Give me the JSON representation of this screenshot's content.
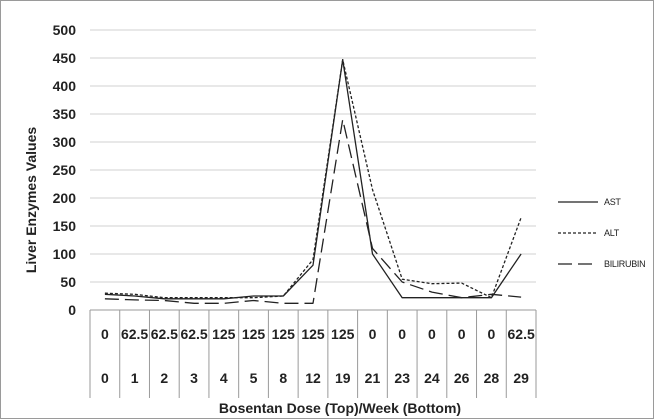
{
  "chart_data": {
    "type": "line",
    "title": "",
    "xlabel": "Bosentan Dose (Top)/Week (Bottom)",
    "ylabel": "Liver Enzymes Values",
    "ylim": [
      0,
      500
    ],
    "yticks": [
      "0",
      "50",
      "100",
      "150",
      "200",
      "250",
      "300",
      "350",
      "400",
      "450",
      "500"
    ],
    "grid": "horizontal",
    "legend_position": "right",
    "categories_dose": [
      "0",
      "62.5",
      "62.5",
      "62.5",
      "125",
      "125",
      "125",
      "125",
      "125",
      "0",
      "0",
      "0",
      "0",
      "0",
      "62.5"
    ],
    "categories_week": [
      "0",
      "1",
      "2",
      "3",
      "4",
      "5",
      "8",
      "12",
      "19",
      "21",
      "23",
      "24",
      "26",
      "28",
      "29"
    ],
    "series": [
      {
        "name": "AST",
        "dash": "solid",
        "values": [
          28,
          25,
          20,
          20,
          20,
          25,
          25,
          80,
          447,
          100,
          22,
          22,
          22,
          22,
          100
        ]
      },
      {
        "name": "ALT",
        "dash": "dotted",
        "values": [
          30,
          28,
          22,
          22,
          22,
          22,
          25,
          90,
          447,
          215,
          55,
          47,
          48,
          22,
          165
        ]
      },
      {
        "name": "BILIRUBIN",
        "dash": "dashed",
        "values": [
          20,
          18,
          17,
          12,
          12,
          17,
          12,
          12,
          340,
          110,
          50,
          32,
          22,
          28,
          23
        ]
      }
    ]
  }
}
